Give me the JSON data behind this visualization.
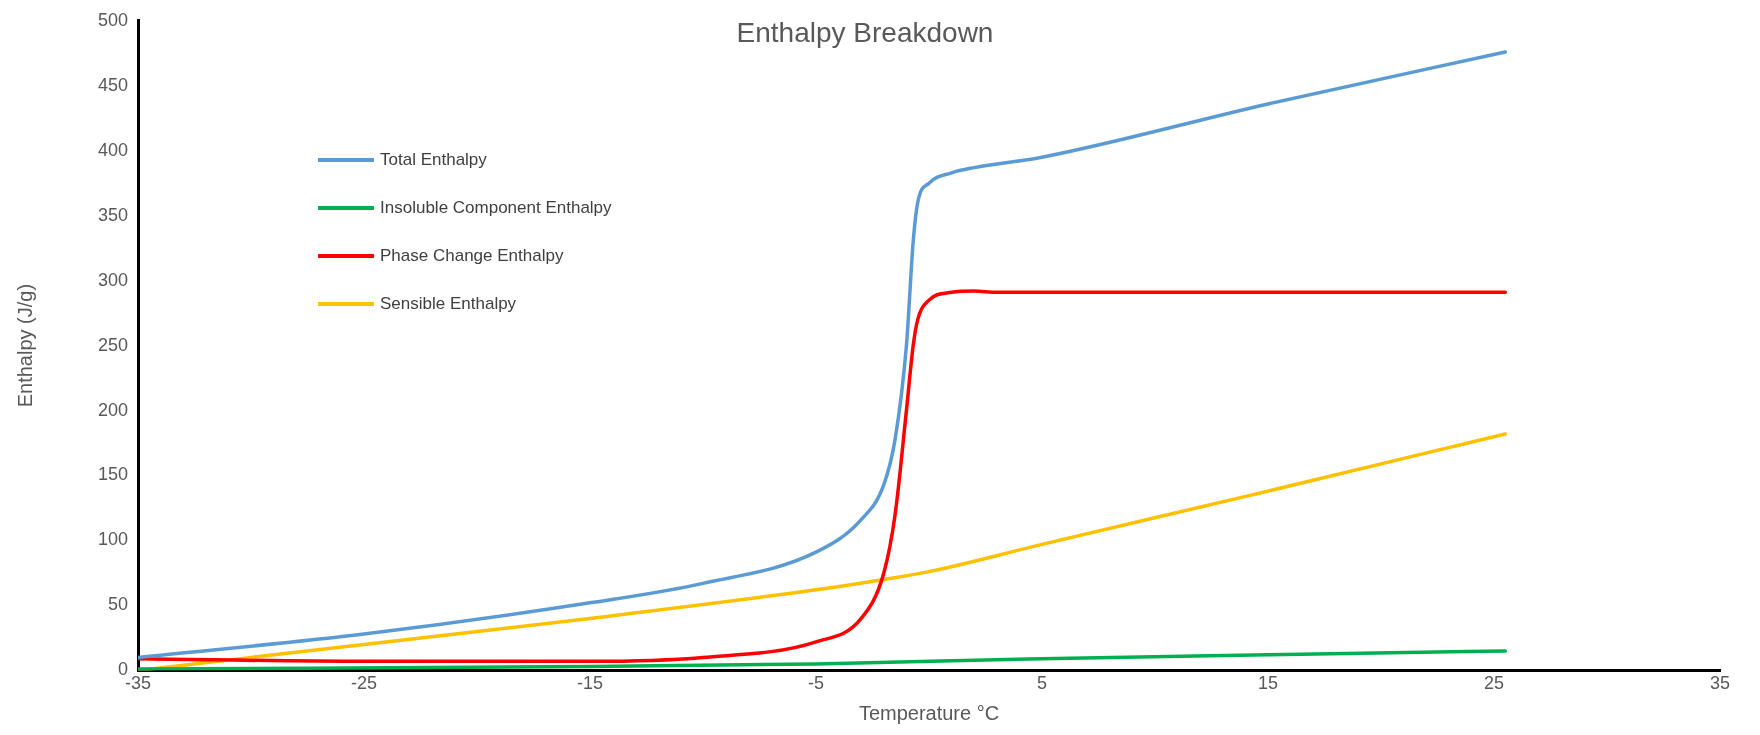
{
  "chart_data": {
    "type": "line",
    "title": "Enthalpy Breakdown",
    "xlabel": "Temperature °C",
    "ylabel": "Enthalpy (J/g)",
    "xlim": [
      -35,
      35
    ],
    "xticks": [
      -35,
      -25,
      -15,
      -5,
      5,
      15,
      25,
      35
    ],
    "ylim": [
      0,
      500
    ],
    "yticks": [
      0,
      50,
      100,
      150,
      200,
      250,
      300,
      350,
      400,
      450,
      500
    ],
    "grid": false,
    "legend": "top left",
    "marker": "none",
    "line_style": "solid",
    "series": [
      {
        "name": "Total Enthalpy",
        "color": "#5b9bd5",
        "x": [
          -35,
          -25,
          -15,
          -10,
          -5,
          -3,
          -2,
          -1.5,
          -1,
          -0.7,
          -0.5,
          0,
          1,
          2,
          5,
          15,
          25.5
        ],
        "values": [
          10,
          28,
          52,
          67,
          91,
          116,
          143,
          178,
          250,
          330,
          360,
          375,
          383,
          387,
          395,
          436,
          476
        ]
      },
      {
        "name": "Insoluble Component Enthalpy",
        "color": "#00b050",
        "x": [
          -35,
          -15,
          -5,
          5,
          15,
          25.5
        ],
        "values": [
          1,
          3,
          5,
          9,
          12,
          15
        ]
      },
      {
        "name": "Phase Change Enthalpy",
        "color": "#ff0000",
        "x": [
          -35,
          -25,
          -15,
          -10,
          -5,
          -3,
          -2,
          -1.5,
          -1,
          -0.7,
          -0.5,
          0,
          1,
          2,
          3,
          25.5
        ],
        "values": [
          9,
          7,
          7,
          10,
          22,
          40,
          75,
          120,
          200,
          250,
          270,
          285,
          291,
          292,
          291,
          291
        ]
      },
      {
        "name": "Sensible Enthalpy",
        "color": "#ffc000",
        "x": [
          -35,
          -25,
          -15,
          -5,
          -2,
          0,
          5,
          15,
          25.5
        ],
        "values": [
          0,
          20,
          40,
          62,
          70,
          76,
          97,
          138,
          182
        ]
      }
    ]
  }
}
